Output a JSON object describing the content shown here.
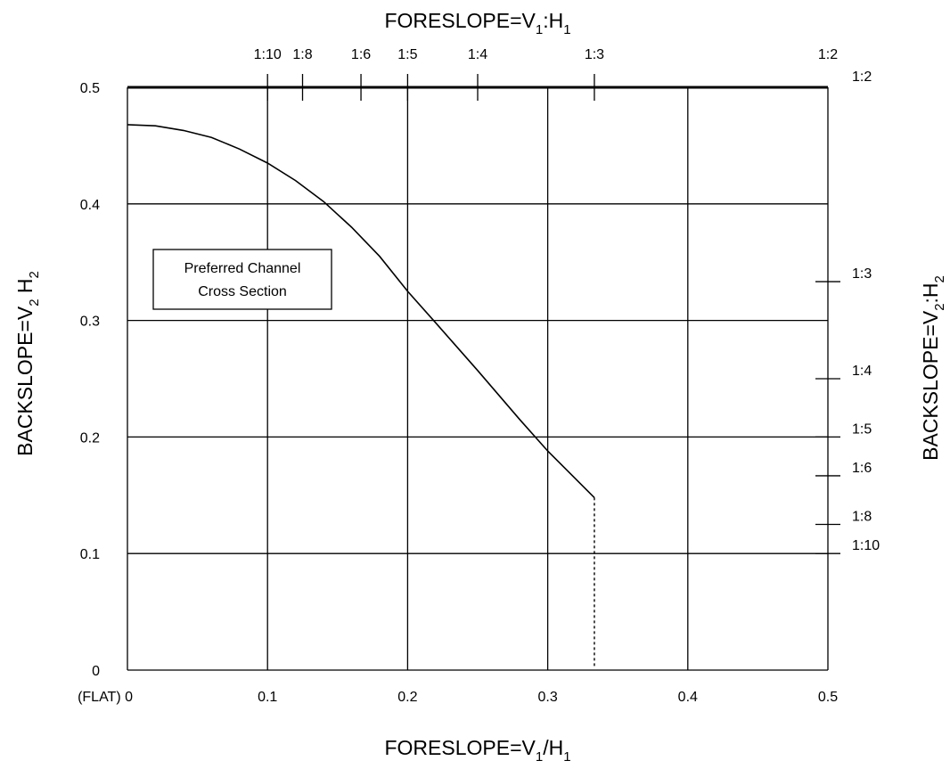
{
  "chart_data": {
    "type": "line",
    "xlabel_bottom": {
      "main": "FORESLOPE=V",
      "sub1": "1",
      "mid": "/H",
      "sub2": "1"
    },
    "xlabel_top": {
      "main": "FORESLOPE=V",
      "sub1": "1",
      "mid": ":H",
      "sub2": "1"
    },
    "ylabel_left": {
      "main": "BACKSLOPE=V",
      "sub1": "2",
      "mid": " H",
      "sub2": "2"
    },
    "ylabel_right": {
      "main": "BACKSLOPE=V",
      "sub1": "2",
      "mid": ":H",
      "sub2": "2"
    },
    "xlim": [
      0,
      0.5
    ],
    "ylim": [
      0,
      0.5
    ],
    "x_ticks": [
      {
        "value": 0,
        "label": "(FLAT) 0"
      },
      {
        "value": 0.1,
        "label": "0.1"
      },
      {
        "value": 0.2,
        "label": "0.2"
      },
      {
        "value": 0.3,
        "label": "0.3"
      },
      {
        "value": 0.4,
        "label": "0.4"
      },
      {
        "value": 0.5,
        "label": "0.5"
      }
    ],
    "y_ticks": [
      {
        "value": 0,
        "label": "0"
      },
      {
        "value": 0.1,
        "label": "0.1"
      },
      {
        "value": 0.2,
        "label": "0.2"
      },
      {
        "value": 0.3,
        "label": "0.3"
      },
      {
        "value": 0.4,
        "label": "0.4"
      },
      {
        "value": 0.5,
        "label": "0.5"
      }
    ],
    "top_ticks": [
      {
        "value": 0.1,
        "label": "1:10"
      },
      {
        "value": 0.125,
        "label": "1:8"
      },
      {
        "value": 0.1667,
        "label": "1:6"
      },
      {
        "value": 0.2,
        "label": "1:5"
      },
      {
        "value": 0.25,
        "label": "1:4"
      },
      {
        "value": 0.3333,
        "label": "1:3"
      },
      {
        "value": 0.5,
        "label": "1:2"
      }
    ],
    "right_ticks": [
      {
        "value": 0.5,
        "label": "1:2"
      },
      {
        "value": 0.3333,
        "label": "1:3"
      },
      {
        "value": 0.25,
        "label": "1:4"
      },
      {
        "value": 0.2,
        "label": "1:5"
      },
      {
        "value": 0.1667,
        "label": "1:6"
      },
      {
        "value": 0.125,
        "label": "1:8"
      },
      {
        "value": 0.1,
        "label": "1:10"
      }
    ],
    "grid": true,
    "boundary_curve": {
      "x": [
        0,
        0.02,
        0.04,
        0.06,
        0.08,
        0.1,
        0.12,
        0.14,
        0.16,
        0.18,
        0.2,
        0.22,
        0.25,
        0.28,
        0.3,
        0.3333
      ],
      "y": [
        0.468,
        0.467,
        0.463,
        0.457,
        0.447,
        0.435,
        0.42,
        0.402,
        0.38,
        0.355,
        0.325,
        0.298,
        0.257,
        0.215,
        0.188,
        0.148
      ]
    },
    "boundary_drop": {
      "x": 0.3333,
      "y_from": 0.148,
      "y_to": 0
    },
    "annotation": [
      "Preferred Channel",
      "Cross Section"
    ]
  }
}
